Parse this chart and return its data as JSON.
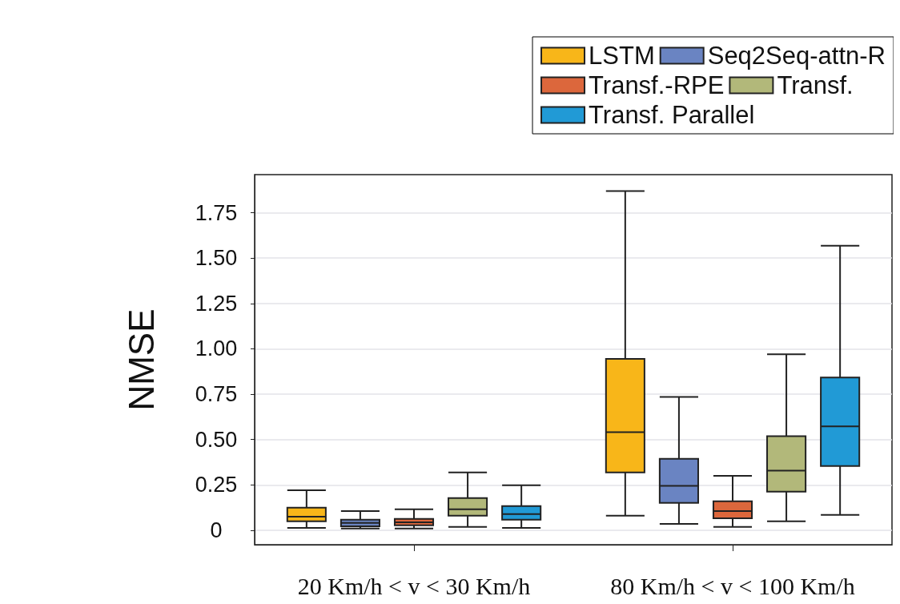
{
  "chart_data": {
    "type": "box",
    "ylabel": "NMSE",
    "categories": [
      "20 Km/h < v < 30 Km/h",
      "80 Km/h < v < 100 Km/h"
    ],
    "ylim": [
      -0.08,
      1.96
    ],
    "yticks": [
      0,
      {
        "value": 0.25,
        "label": "0.25"
      },
      {
        "value": 0.5,
        "label": "0.50"
      },
      {
        "value": 0.75,
        "label": "0.75"
      },
      {
        "value": 1,
        "label": "1.00"
      },
      {
        "value": 1.25,
        "label": "1.25"
      },
      {
        "value": 1.5,
        "label": "1.50"
      },
      {
        "value": 1.75,
        "label": "1.75"
      }
    ],
    "grid": "y",
    "legend": "top right",
    "series": [
      {
        "name": "LSTM",
        "color": "#f8b619",
        "boxes": [
          {
            "low": 0.013,
            "q1": 0.049,
            "median": 0.075,
            "q3": 0.124,
            "high": 0.22
          },
          {
            "low": 0.08,
            "q1": 0.319,
            "median": 0.54,
            "q3": 0.944,
            "high": 1.87
          }
        ]
      },
      {
        "name": "Seq2Seq-attn-R",
        "color": "#6a84c2",
        "boxes": [
          {
            "low": 0.009,
            "q1": 0.022,
            "median": 0.04,
            "q3": 0.058,
            "high": 0.106
          },
          {
            "low": 0.035,
            "q1": 0.151,
            "median": 0.244,
            "q3": 0.394,
            "high": 0.735
          }
        ]
      },
      {
        "name": "Transf.-RPE",
        "color": "#dc673c",
        "boxes": [
          {
            "low": 0.009,
            "q1": 0.027,
            "median": 0.044,
            "q3": 0.062,
            "high": 0.115
          },
          {
            "low": 0.018,
            "q1": 0.066,
            "median": 0.106,
            "q3": 0.16,
            "high": 0.3
          }
        ]
      },
      {
        "name": "Transf.",
        "color": "#b2b87a",
        "boxes": [
          {
            "low": 0.018,
            "q1": 0.08,
            "median": 0.115,
            "q3": 0.177,
            "high": 0.319
          },
          {
            "low": 0.049,
            "q1": 0.213,
            "median": 0.328,
            "q3": 0.518,
            "high": 0.97
          }
        ]
      },
      {
        "name": "Transf. Parallel",
        "color": "#219ad6",
        "boxes": [
          {
            "low": 0.013,
            "q1": 0.058,
            "median": 0.089,
            "q3": 0.133,
            "high": 0.248
          },
          {
            "low": 0.084,
            "q1": 0.354,
            "median": 0.572,
            "q3": 0.842,
            "high": 1.568
          }
        ]
      }
    ]
  }
}
